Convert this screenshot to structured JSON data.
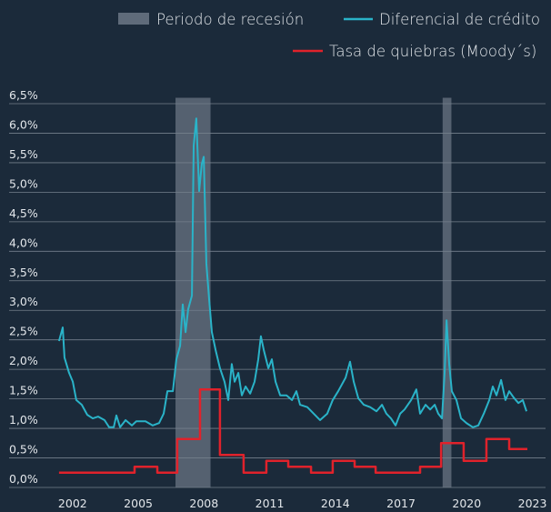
{
  "chart_data": {
    "type": "line",
    "xlim": [
      1999.1,
      2023.6
    ],
    "ylim": [
      0,
      6.6
    ],
    "xticks": [
      2002,
      2005,
      2008,
      2011,
      2014,
      2017,
      2020,
      2023
    ],
    "yticks": [
      {
        "value": 0,
        "label": "0,0%"
      },
      {
        "value": 0.5,
        "label": "0,5%"
      },
      {
        "value": 1,
        "label": "1,0%"
      },
      {
        "value": 1.5,
        "label": "1,5%"
      },
      {
        "value": 2,
        "label": "2,0%"
      },
      {
        "value": 2.5,
        "label": "2,5%"
      },
      {
        "value": 3,
        "label": "3,0%"
      },
      {
        "value": 3.5,
        "label": "3,5%"
      },
      {
        "value": 4,
        "label": "4,0%"
      },
      {
        "value": 4.5,
        "label": "4,5%"
      },
      {
        "value": 5,
        "label": "5,0%"
      },
      {
        "value": 5.5,
        "label": "5,5%"
      },
      {
        "value": 6,
        "label": "6,0%"
      },
      {
        "value": 6.5,
        "label": "6,5%"
      }
    ],
    "grid": true,
    "recessions": {
      "name": "Periodo de recesión",
      "color": "#5f6b7a",
      "ranges": [
        [
          2006.7,
          2008.3
        ],
        [
          2018.9,
          2019.3
        ]
      ]
    },
    "series": [
      {
        "name": "Diferencial de crédito",
        "color": "#2ab3c8",
        "x": [
          2001.38,
          2001.55,
          2001.63,
          2001.84,
          2002.01,
          2002.17,
          2002.42,
          2002.67,
          2002.92,
          2003.17,
          2003.46,
          2003.67,
          2003.88,
          2004.0,
          2004.17,
          2004.42,
          2004.71,
          2004.91,
          2005.33,
          2005.66,
          2005.95,
          2006.16,
          2006.33,
          2006.58,
          2006.74,
          2006.91,
          2007.03,
          2007.16,
          2007.28,
          2007.45,
          2007.53,
          2007.65,
          2007.78,
          2007.9,
          2007.99,
          2008.11,
          2008.24,
          2008.36,
          2008.53,
          2008.73,
          2008.94,
          2009.11,
          2009.27,
          2009.4,
          2009.57,
          2009.73,
          2009.9,
          2010.11,
          2010.31,
          2010.48,
          2010.6,
          2010.73,
          2010.94,
          2011.1,
          2011.27,
          2011.48,
          2011.77,
          2012.02,
          2012.22,
          2012.39,
          2012.72,
          2013.01,
          2013.3,
          2013.63,
          2013.88,
          2014.13,
          2014.47,
          2014.67,
          2014.84,
          2015.05,
          2015.3,
          2015.59,
          2015.88,
          2016.13,
          2016.33,
          2016.54,
          2016.75,
          2016.96,
          2017.16,
          2017.46,
          2017.7,
          2017.87,
          2018.12,
          2018.33,
          2018.54,
          2018.7,
          2018.87,
          2018.99,
          2019.08,
          2019.2,
          2019.32,
          2019.53,
          2019.74,
          2019.99,
          2020.28,
          2020.53,
          2020.78,
          2021.03,
          2021.19,
          2021.36,
          2021.57,
          2021.77,
          2021.94,
          2022.15,
          2022.36,
          2022.56,
          2022.73
        ],
        "values": [
          2.48,
          2.71,
          2.2,
          1.94,
          1.79,
          1.48,
          1.4,
          1.23,
          1.17,
          1.2,
          1.14,
          1.02,
          1.02,
          1.22,
          1.02,
          1.14,
          1.05,
          1.12,
          1.12,
          1.05,
          1.09,
          1.25,
          1.63,
          1.63,
          2.17,
          2.4,
          3.1,
          2.63,
          3.02,
          3.25,
          5.79,
          6.25,
          5.02,
          5.48,
          5.6,
          3.79,
          3.17,
          2.63,
          2.33,
          2.02,
          1.79,
          1.48,
          2.09,
          1.79,
          1.94,
          1.56,
          1.71,
          1.59,
          1.79,
          2.17,
          2.56,
          2.33,
          2.02,
          2.17,
          1.79,
          1.56,
          1.56,
          1.48,
          1.63,
          1.4,
          1.36,
          1.25,
          1.14,
          1.25,
          1.48,
          1.63,
          1.86,
          2.13,
          1.79,
          1.51,
          1.4,
          1.36,
          1.29,
          1.4,
          1.25,
          1.17,
          1.05,
          1.25,
          1.32,
          1.48,
          1.66,
          1.25,
          1.4,
          1.32,
          1.4,
          1.25,
          1.17,
          1.94,
          2.83,
          2.09,
          1.63,
          1.48,
          1.17,
          1.09,
          1.02,
          1.05,
          1.25,
          1.48,
          1.71,
          1.56,
          1.82,
          1.48,
          1.63,
          1.52,
          1.43,
          1.48,
          1.29
        ]
      },
      {
        "name": "Tasa de quiebras (Moody´s)",
        "color": "#e0222b",
        "step": "post",
        "x": [
          2001.38,
          2004.83,
          2005.87,
          2006.78,
          2007.82,
          2008.73,
          2009.81,
          2010.85,
          2011.85,
          2012.89,
          2013.88,
          2014.88,
          2015.84,
          2017.87,
          2018.83,
          2019.86,
          2020.9,
          2021.94,
          2022.77
        ],
        "values": [
          0.25,
          0.35,
          0.25,
          0.82,
          1.66,
          0.55,
          0.25,
          0.45,
          0.35,
          0.25,
          0.45,
          0.35,
          0.25,
          0.35,
          0.75,
          0.45,
          0.82,
          0.65,
          0.65
        ]
      }
    ]
  }
}
